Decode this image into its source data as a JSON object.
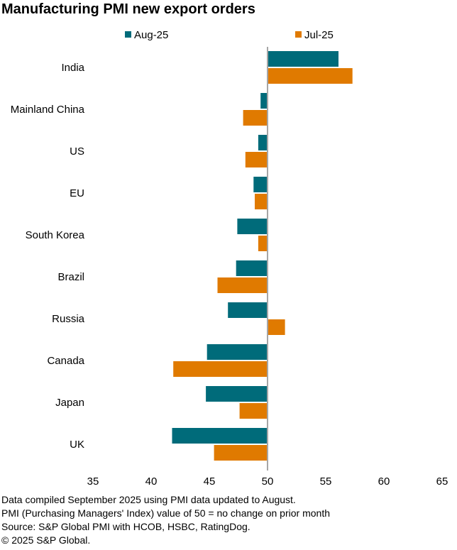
{
  "title": "Manufacturing PMI new export orders",
  "footnotes": [
    "Data compiled September 2025 using PMI data updated to August.",
    "PMI (Purchasing Managers' Index) value of 50 = no change on prior month",
    "Source: S&P Global PMI with HCOB, HSBC, RatingDog.",
    "© 2025 S&P Global."
  ],
  "colors": {
    "aug": "#006b7a",
    "jul": "#e07a00",
    "baseline": "#a6a6a6"
  },
  "chart_data": {
    "type": "bar",
    "orientation": "horizontal",
    "baseline": 50,
    "xlim": [
      35,
      65
    ],
    "xticks": [
      35,
      40,
      45,
      50,
      55,
      60,
      65
    ],
    "legend": "top",
    "grid": false,
    "categories": [
      "India",
      "Mainland China",
      "US",
      "EU",
      "South Korea",
      "Brazil",
      "Russia",
      "Canada",
      "Japan",
      "UK"
    ],
    "series": [
      {
        "name": "Aug-25",
        "color": "#006b7a",
        "values": [
          56.1,
          49.4,
          49.2,
          48.8,
          47.4,
          47.3,
          46.6,
          44.8,
          44.7,
          41.8
        ]
      },
      {
        "name": "Jul-25",
        "color": "#e07a00",
        "values": [
          57.3,
          47.9,
          48.1,
          48.9,
          49.2,
          45.7,
          51.5,
          41.9,
          47.6,
          45.4
        ]
      }
    ]
  }
}
